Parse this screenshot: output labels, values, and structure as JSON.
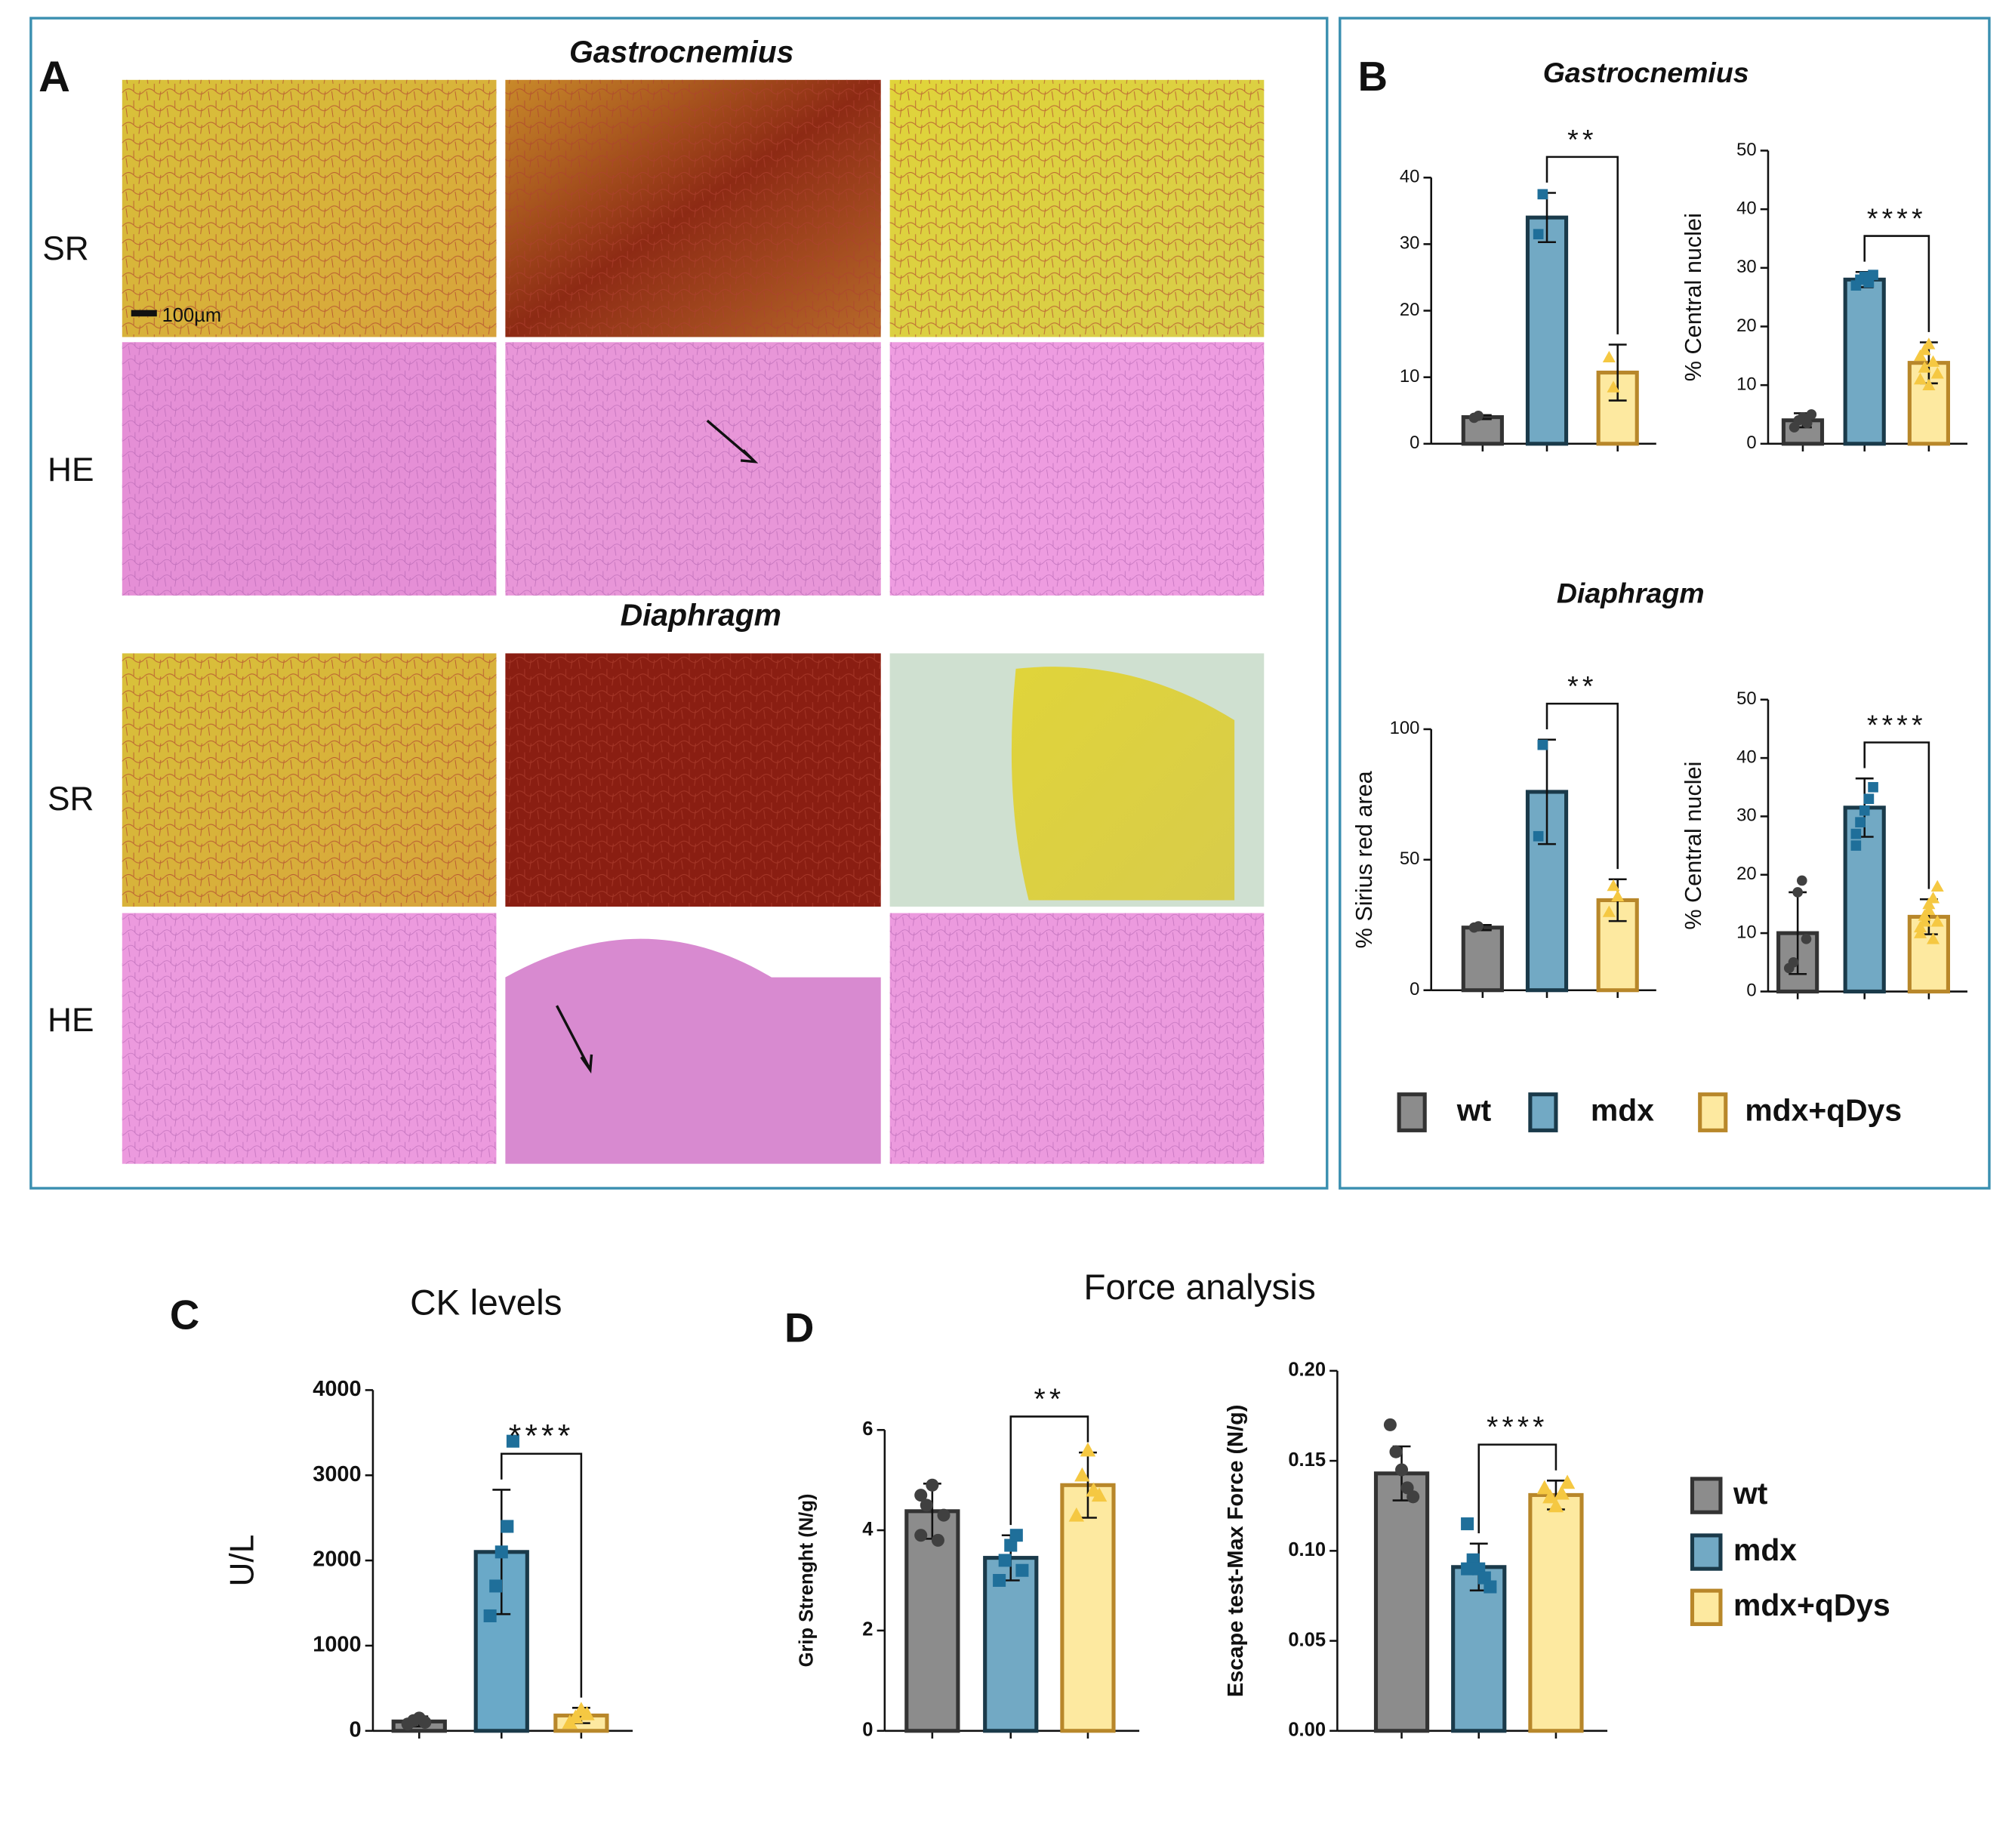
{
  "panels": {
    "label_a": "A",
    "label_b": "B",
    "label_c": "C",
    "label_d": "D",
    "gastro_title": "Gastrocnemius",
    "diaphragm_title": "Diaphragm",
    "b_gastro_title": "Gastrocnemius",
    "b_diaphragm_title": "Diaphragm",
    "row_sr_1": "SR",
    "row_he_1": "HE",
    "row_sr_2": "SR",
    "row_he_2": "HE",
    "scale_bar": "100µm",
    "force_title": "Force analysis"
  },
  "chart_data": [
    {
      "type": "bar",
      "ylim": [
        0,
        40
      ],
      "yticks": [
        0,
        10,
        20,
        30,
        40
      ],
      "significance": {
        "from": 1,
        "to": 2,
        "label": "**"
      },
      "series": [
        {
          "name": "wt",
          "color": "#8c8c8c",
          "edge_color": "#333333",
          "point_color": "#404040",
          "values": [
            4
          ],
          "errors": [
            0.3
          ],
          "points": [
            3.9,
            4.2
          ]
        },
        {
          "name": "mdx",
          "color": "#72a9c4",
          "edge_color": "#1a3a4a",
          "point_color": "#1f6f9a",
          "values": [
            34
          ],
          "errors": [
            3.7
          ],
          "points": [
            31.5,
            37.5
          ]
        },
        {
          "name": "mdx+qDys",
          "color": "#fde9a0",
          "edge_color": "#b8872a",
          "point_color": "#f5c842",
          "values": [
            10.7
          ],
          "errors": [
            4.2
          ],
          "points": [
            13,
            8.5
          ]
        }
      ]
    },
    {
      "type": "bar",
      "ylabel": "% Central nuclei",
      "ylim": [
        0,
        50
      ],
      "yticks": [
        0,
        10,
        20,
        30,
        40,
        50
      ],
      "significance": {
        "from": 1,
        "to": 2,
        "label": "****"
      },
      "series": [
        {
          "color": "#8c8c8c",
          "edge_color": "#333333",
          "point_color": "#404040",
          "values": [
            4
          ],
          "errors": [
            1.2
          ],
          "points": [
            2.8,
            4,
            4.5,
            3.5,
            5
          ]
        },
        {
          "color": "#72a9c4",
          "edge_color": "#1a3a4a",
          "point_color": "#1f6f9a",
          "values": [
            28
          ],
          "errors": [
            1.3
          ],
          "points": [
            27,
            28,
            28.5,
            27.5,
            28.8
          ]
        },
        {
          "color": "#fde9a0",
          "edge_color": "#b8872a",
          "point_color": "#f5c842",
          "values": [
            13.8
          ],
          "errors": [
            3.5
          ],
          "points": [
            11,
            13,
            17,
            14,
            12,
            15,
            16,
            10
          ]
        }
      ]
    },
    {
      "type": "bar",
      "ylabel": "% Sirius red area",
      "ylim": [
        0,
        100
      ],
      "yticks": [
        0,
        50,
        100
      ],
      "significance": {
        "from": 1,
        "to": 2,
        "label": "**"
      },
      "series": [
        {
          "color": "#8c8c8c",
          "edge_color": "#333333",
          "point_color": "#404040",
          "values": [
            24
          ],
          "errors": [
            1
          ],
          "points": [
            24,
            24.5
          ]
        },
        {
          "color": "#72a9c4",
          "edge_color": "#1a3a4a",
          "point_color": "#1f6f9a",
          "values": [
            76
          ],
          "errors": [
            20
          ],
          "points": [
            59,
            94
          ]
        },
        {
          "color": "#fde9a0",
          "edge_color": "#b8872a",
          "point_color": "#f5c842",
          "values": [
            34.5
          ],
          "errors": [
            8
          ],
          "points": [
            30,
            40,
            36
          ]
        }
      ]
    },
    {
      "type": "bar",
      "ylabel": "% Central nuclei",
      "ylim": [
        0,
        50
      ],
      "yticks": [
        0,
        10,
        20,
        30,
        40,
        50
      ],
      "significance": {
        "from": 1,
        "to": 2,
        "label": "****"
      },
      "series": [
        {
          "color": "#8c8c8c",
          "edge_color": "#333333",
          "point_color": "#404040",
          "values": [
            10
          ],
          "errors": [
            7
          ],
          "points": [
            4,
            5,
            17,
            19,
            9
          ]
        },
        {
          "color": "#72a9c4",
          "edge_color": "#1a3a4a",
          "point_color": "#1f6f9a",
          "values": [
            31.5
          ],
          "errors": [
            5
          ],
          "points": [
            27,
            29,
            31,
            33,
            35,
            25
          ]
        },
        {
          "color": "#fde9a0",
          "edge_color": "#b8872a",
          "point_color": "#f5c842",
          "values": [
            12.8
          ],
          "errors": [
            3
          ],
          "points": [
            10,
            12,
            14,
            16,
            18,
            11,
            13,
            15,
            9,
            12
          ]
        }
      ]
    },
    {
      "type": "bar",
      "title": "CK levels",
      "ylabel": "U/L",
      "ylim": [
        0,
        4000
      ],
      "yticks": [
        0,
        1000,
        2000,
        3000,
        4000
      ],
      "significance": {
        "from": 1,
        "to": 2,
        "label": "****"
      },
      "series": [
        {
          "color": "#8c8c8c",
          "edge_color": "#333333",
          "point_color": "#404040",
          "values": [
            110
          ],
          "errors": [
            60
          ],
          "points": [
            80,
            120,
            150,
            100
          ]
        },
        {
          "color": "#6aa9c8",
          "edge_color": "#1a3a4a",
          "point_color": "#1f6f9a",
          "values": [
            2100
          ],
          "errors": [
            730
          ],
          "points": [
            1350,
            1700,
            2100,
            2400,
            3400
          ]
        },
        {
          "color": "#fde9a0",
          "edge_color": "#b8872a",
          "point_color": "#f5c842",
          "values": [
            180
          ],
          "errors": [
            90
          ],
          "points": [
            100,
            160,
            250,
            200
          ]
        }
      ]
    },
    {
      "type": "bar",
      "ylabel": "Grip Strenght (N/g)",
      "ylim": [
        0,
        6
      ],
      "yticks": [
        0,
        2,
        4,
        6
      ],
      "significance": {
        "from": 1,
        "to": 2,
        "label": "**"
      },
      "series": [
        {
          "name": "wt",
          "color": "#8c8c8c",
          "edge_color": "#333333",
          "point_color": "#404040",
          "values": [
            4.38
          ],
          "errors": [
            0.55
          ],
          "points": [
            3.9,
            4.5,
            4.9,
            3.8,
            4.3,
            4.7
          ]
        },
        {
          "name": "mdx",
          "color": "#72a9c4",
          "edge_color": "#1a3a4a",
          "point_color": "#1f6f9a",
          "values": [
            3.45
          ],
          "errors": [
            0.45
          ],
          "points": [
            3.0,
            3.4,
            3.7,
            3.9,
            3.2
          ]
        },
        {
          "name": "mdx+qDys",
          "color": "#fde9a0",
          "edge_color": "#b8872a",
          "point_color": "#f5c842",
          "values": [
            4.9
          ],
          "errors": [
            0.65
          ],
          "points": [
            4.3,
            5.1,
            5.6,
            4.8,
            4.7
          ]
        }
      ]
    },
    {
      "type": "bar",
      "ylabel": "Escape test-Max Force (N/g)",
      "ylim": [
        0,
        0.2
      ],
      "yticks": [
        {
          "value": 0,
          "label": "0.00"
        },
        {
          "value": 0.05,
          "label": "0.05"
        },
        {
          "value": 0.1,
          "label": "0.10"
        },
        {
          "value": 0.15,
          "label": "0.15"
        },
        {
          "value": 0.2,
          "label": "0.20"
        }
      ],
      "significance": {
        "from": 1,
        "to": 2,
        "label": "****"
      },
      "series": [
        {
          "color": "#8c8c8c",
          "edge_color": "#333333",
          "point_color": "#404040",
          "values": [
            0.143
          ],
          "errors": [
            0.015
          ],
          "points": [
            0.17,
            0.155,
            0.145,
            0.135,
            0.13
          ]
        },
        {
          "color": "#72a9c4",
          "edge_color": "#1a3a4a",
          "point_color": "#1f6f9a",
          "values": [
            0.091
          ],
          "errors": [
            0.013
          ],
          "points": [
            0.115,
            0.095,
            0.09,
            0.085,
            0.08,
            0.09
          ]
        },
        {
          "color": "#fde9a0",
          "edge_color": "#b8872a",
          "point_color": "#f5c842",
          "values": [
            0.131
          ],
          "errors": [
            0.008
          ],
          "points": [
            0.135,
            0.13,
            0.125,
            0.132,
            0.138
          ]
        }
      ]
    }
  ]
}
